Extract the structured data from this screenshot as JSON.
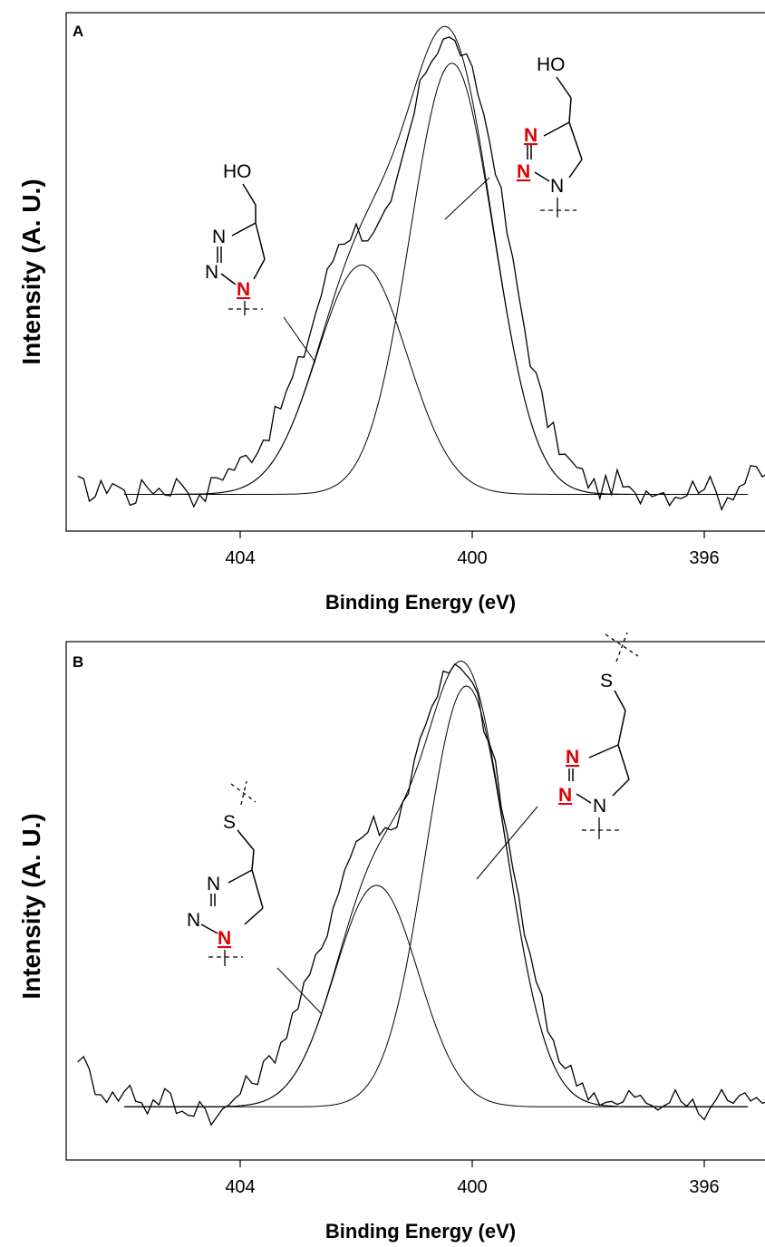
{
  "chart_data": [
    {
      "type": "line",
      "panel_label": "A",
      "xlabel": "Binding Energy (eV)",
      "ylabel": "Intensity (A. U.)",
      "xlim": [
        407,
        394.5
      ],
      "x_reversed": true,
      "x_ticks": [
        404,
        400,
        396
      ],
      "x_tick_labels": [
        "404",
        "400",
        "396"
      ],
      "y_ticks_shown": false,
      "ylim": [
        -0.08,
        1.05
      ],
      "series": [
        {
          "role": "measured",
          "x": [
            406.8,
            406.5,
            406.2,
            405.9,
            405.6,
            405.3,
            405.0,
            404.7,
            404.4,
            404.1,
            403.8,
            403.5,
            403.2,
            402.9,
            402.6,
            402.3,
            402.0,
            401.7,
            401.4,
            401.1,
            400.8,
            400.5,
            400.2,
            399.9,
            399.6,
            399.3,
            399.0,
            398.7,
            398.4,
            398.1,
            397.8,
            397.5,
            397.2,
            396.9,
            396.6,
            396.3,
            396.0,
            395.7,
            395.4,
            395.1,
            394.8
          ],
          "y": [
            0.02,
            0.0,
            0.03,
            -0.01,
            0.02,
            0.01,
            0.03,
            -0.02,
            0.04,
            0.06,
            0.09,
            0.14,
            0.22,
            0.31,
            0.44,
            0.55,
            0.58,
            0.56,
            0.62,
            0.78,
            0.93,
            1.0,
            0.97,
            0.88,
            0.72,
            0.5,
            0.3,
            0.16,
            0.08,
            0.04,
            0.01,
            0.03,
            -0.01,
            0.02,
            0.0,
            0.01,
            0.03,
            -0.01,
            0.02,
            0.05,
            0.03
          ]
        },
        {
          "role": "fit-component",
          "center": 401.9,
          "height": 0.5,
          "sigma": 0.78
        },
        {
          "role": "fit-component",
          "center": 400.35,
          "height": 0.94,
          "sigma": 0.72
        }
      ],
      "baseline": 0.0,
      "structure_labels": {
        "hydroxyl": "HO",
        "nitrogen": "N"
      }
    },
    {
      "type": "line",
      "panel_label": "B",
      "xlabel": "Binding Energy (eV)",
      "ylabel": "Intensity (A. U.)",
      "xlim": [
        407,
        394.5
      ],
      "x_reversed": true,
      "x_ticks": [
        404,
        400,
        396
      ],
      "x_tick_labels": [
        "404",
        "400",
        "396"
      ],
      "y_ticks_shown": false,
      "ylim": [
        -0.12,
        1.05
      ],
      "series": [
        {
          "role": "measured",
          "x": [
            406.8,
            406.5,
            406.2,
            405.9,
            405.6,
            405.3,
            405.0,
            404.7,
            404.4,
            404.1,
            403.8,
            403.5,
            403.2,
            402.9,
            402.6,
            402.3,
            402.0,
            401.7,
            401.4,
            401.1,
            400.8,
            400.5,
            400.2,
            399.9,
            399.6,
            399.3,
            399.0,
            398.7,
            398.4,
            398.1,
            397.8,
            397.5,
            397.2,
            396.9,
            396.6,
            396.3,
            396.0,
            395.7,
            395.4,
            395.1,
            394.8
          ],
          "y": [
            0.12,
            0.05,
            0.02,
            0.04,
            0.0,
            0.03,
            -0.02,
            0.01,
            -0.03,
            0.02,
            0.06,
            0.1,
            0.17,
            0.26,
            0.36,
            0.5,
            0.6,
            0.64,
            0.62,
            0.72,
            0.88,
            0.97,
            0.99,
            0.92,
            0.76,
            0.54,
            0.33,
            0.18,
            0.09,
            0.05,
            0.02,
            0.0,
            0.03,
            -0.01,
            0.02,
            0.01,
            -0.02,
            0.03,
            0.01,
            0.04,
            0.0
          ]
        },
        {
          "role": "fit-component",
          "center": 401.65,
          "height": 0.5,
          "sigma": 0.72
        },
        {
          "role": "fit-component",
          "center": 400.1,
          "height": 0.95,
          "sigma": 0.7
        }
      ],
      "baseline": 0.0,
      "structure_labels": {
        "thioether": "S",
        "nitrogen": "N"
      }
    }
  ]
}
